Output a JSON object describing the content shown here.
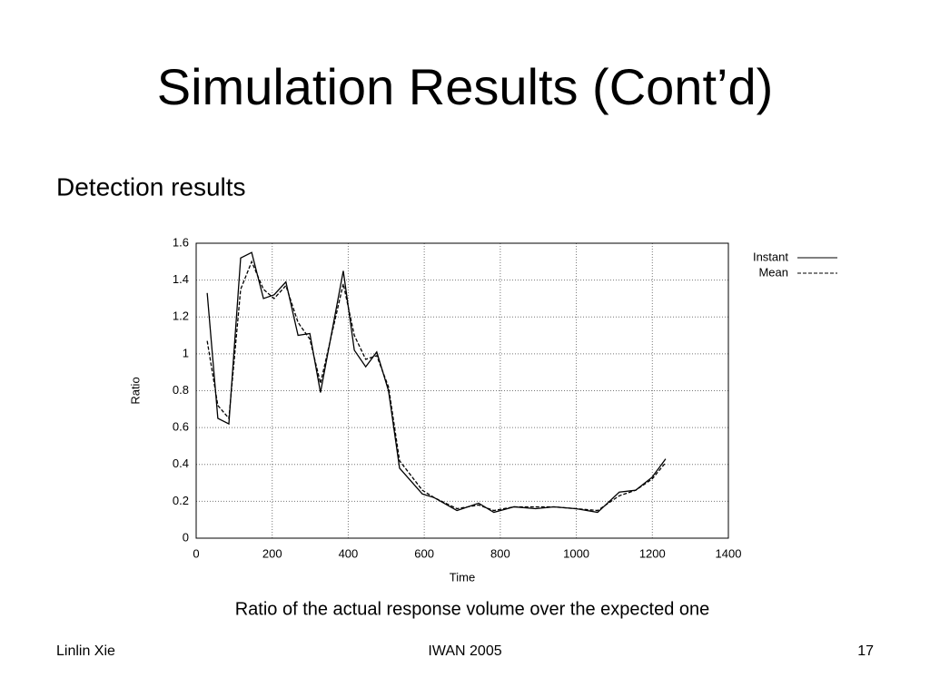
{
  "slide": {
    "title": "Simulation Results (Cont’d)",
    "bullet": "Detection results",
    "caption": "Ratio of the actual response volume over the expected one",
    "footer": {
      "left": "Linlin Xie",
      "center": "IWAN 2005",
      "right": "17"
    }
  },
  "chart_data": {
    "type": "line",
    "x_label": "Time",
    "y_label": "Ratio",
    "x": [
      29,
      57,
      86,
      117,
      146,
      177,
      205,
      236,
      268,
      299,
      327,
      387,
      416,
      446,
      475,
      506,
      535,
      595,
      626,
      686,
      743,
      783,
      836,
      893,
      941,
      999,
      1056,
      1113,
      1156,
      1199,
      1235
    ],
    "series": [
      {
        "name": "Instant",
        "color": "#000000",
        "dashed": false,
        "values": [
          1.33,
          0.65,
          0.62,
          1.52,
          1.55,
          1.3,
          1.32,
          1.39,
          1.1,
          1.11,
          0.79,
          1.45,
          1.02,
          0.93,
          1.01,
          0.8,
          0.38,
          0.24,
          0.22,
          0.15,
          0.19,
          0.14,
          0.17,
          0.16,
          0.17,
          0.16,
          0.14,
          0.25,
          0.26,
          0.33,
          0.43
        ]
      },
      {
        "name": "Mean",
        "color": "#000000",
        "dashed": true,
        "values": [
          1.07,
          0.72,
          0.65,
          1.35,
          1.5,
          1.35,
          1.3,
          1.37,
          1.17,
          1.08,
          0.84,
          1.38,
          1.1,
          0.97,
          0.99,
          0.82,
          0.42,
          0.26,
          0.22,
          0.16,
          0.18,
          0.15,
          0.17,
          0.17,
          0.17,
          0.16,
          0.15,
          0.23,
          0.26,
          0.32,
          0.41
        ]
      }
    ],
    "xlim": [
      0,
      1400
    ],
    "xticks": [
      0,
      200,
      400,
      600,
      800,
      1000,
      1200,
      1400
    ],
    "ylim": [
      0,
      1.6
    ],
    "yticks": [
      0,
      0.2,
      0.4,
      0.6,
      0.8,
      1,
      1.2,
      1.4,
      1.6
    ],
    "grid": true,
    "legend": "outside-top-right"
  }
}
